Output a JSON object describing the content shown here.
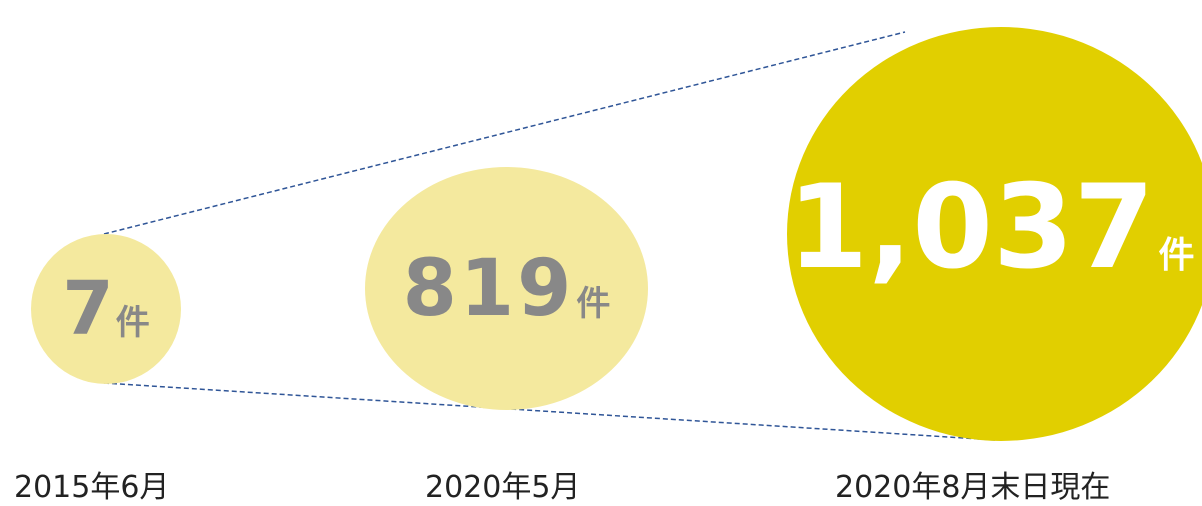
{
  "colors": {
    "light_bubble": "#f4e99e",
    "dark_bubble": "#e1cf00",
    "light_number_text": "#888888",
    "dark_number_text": "#ffffff",
    "guide_line": "#2f5597"
  },
  "items": [
    {
      "number": "7",
      "unit": "件",
      "date": "2015年6月"
    },
    {
      "number": "819",
      "unit": "件",
      "date": "2020年5月"
    },
    {
      "number": "1,037",
      "unit": "件",
      "date": "2020年8月末日現在"
    }
  ]
}
